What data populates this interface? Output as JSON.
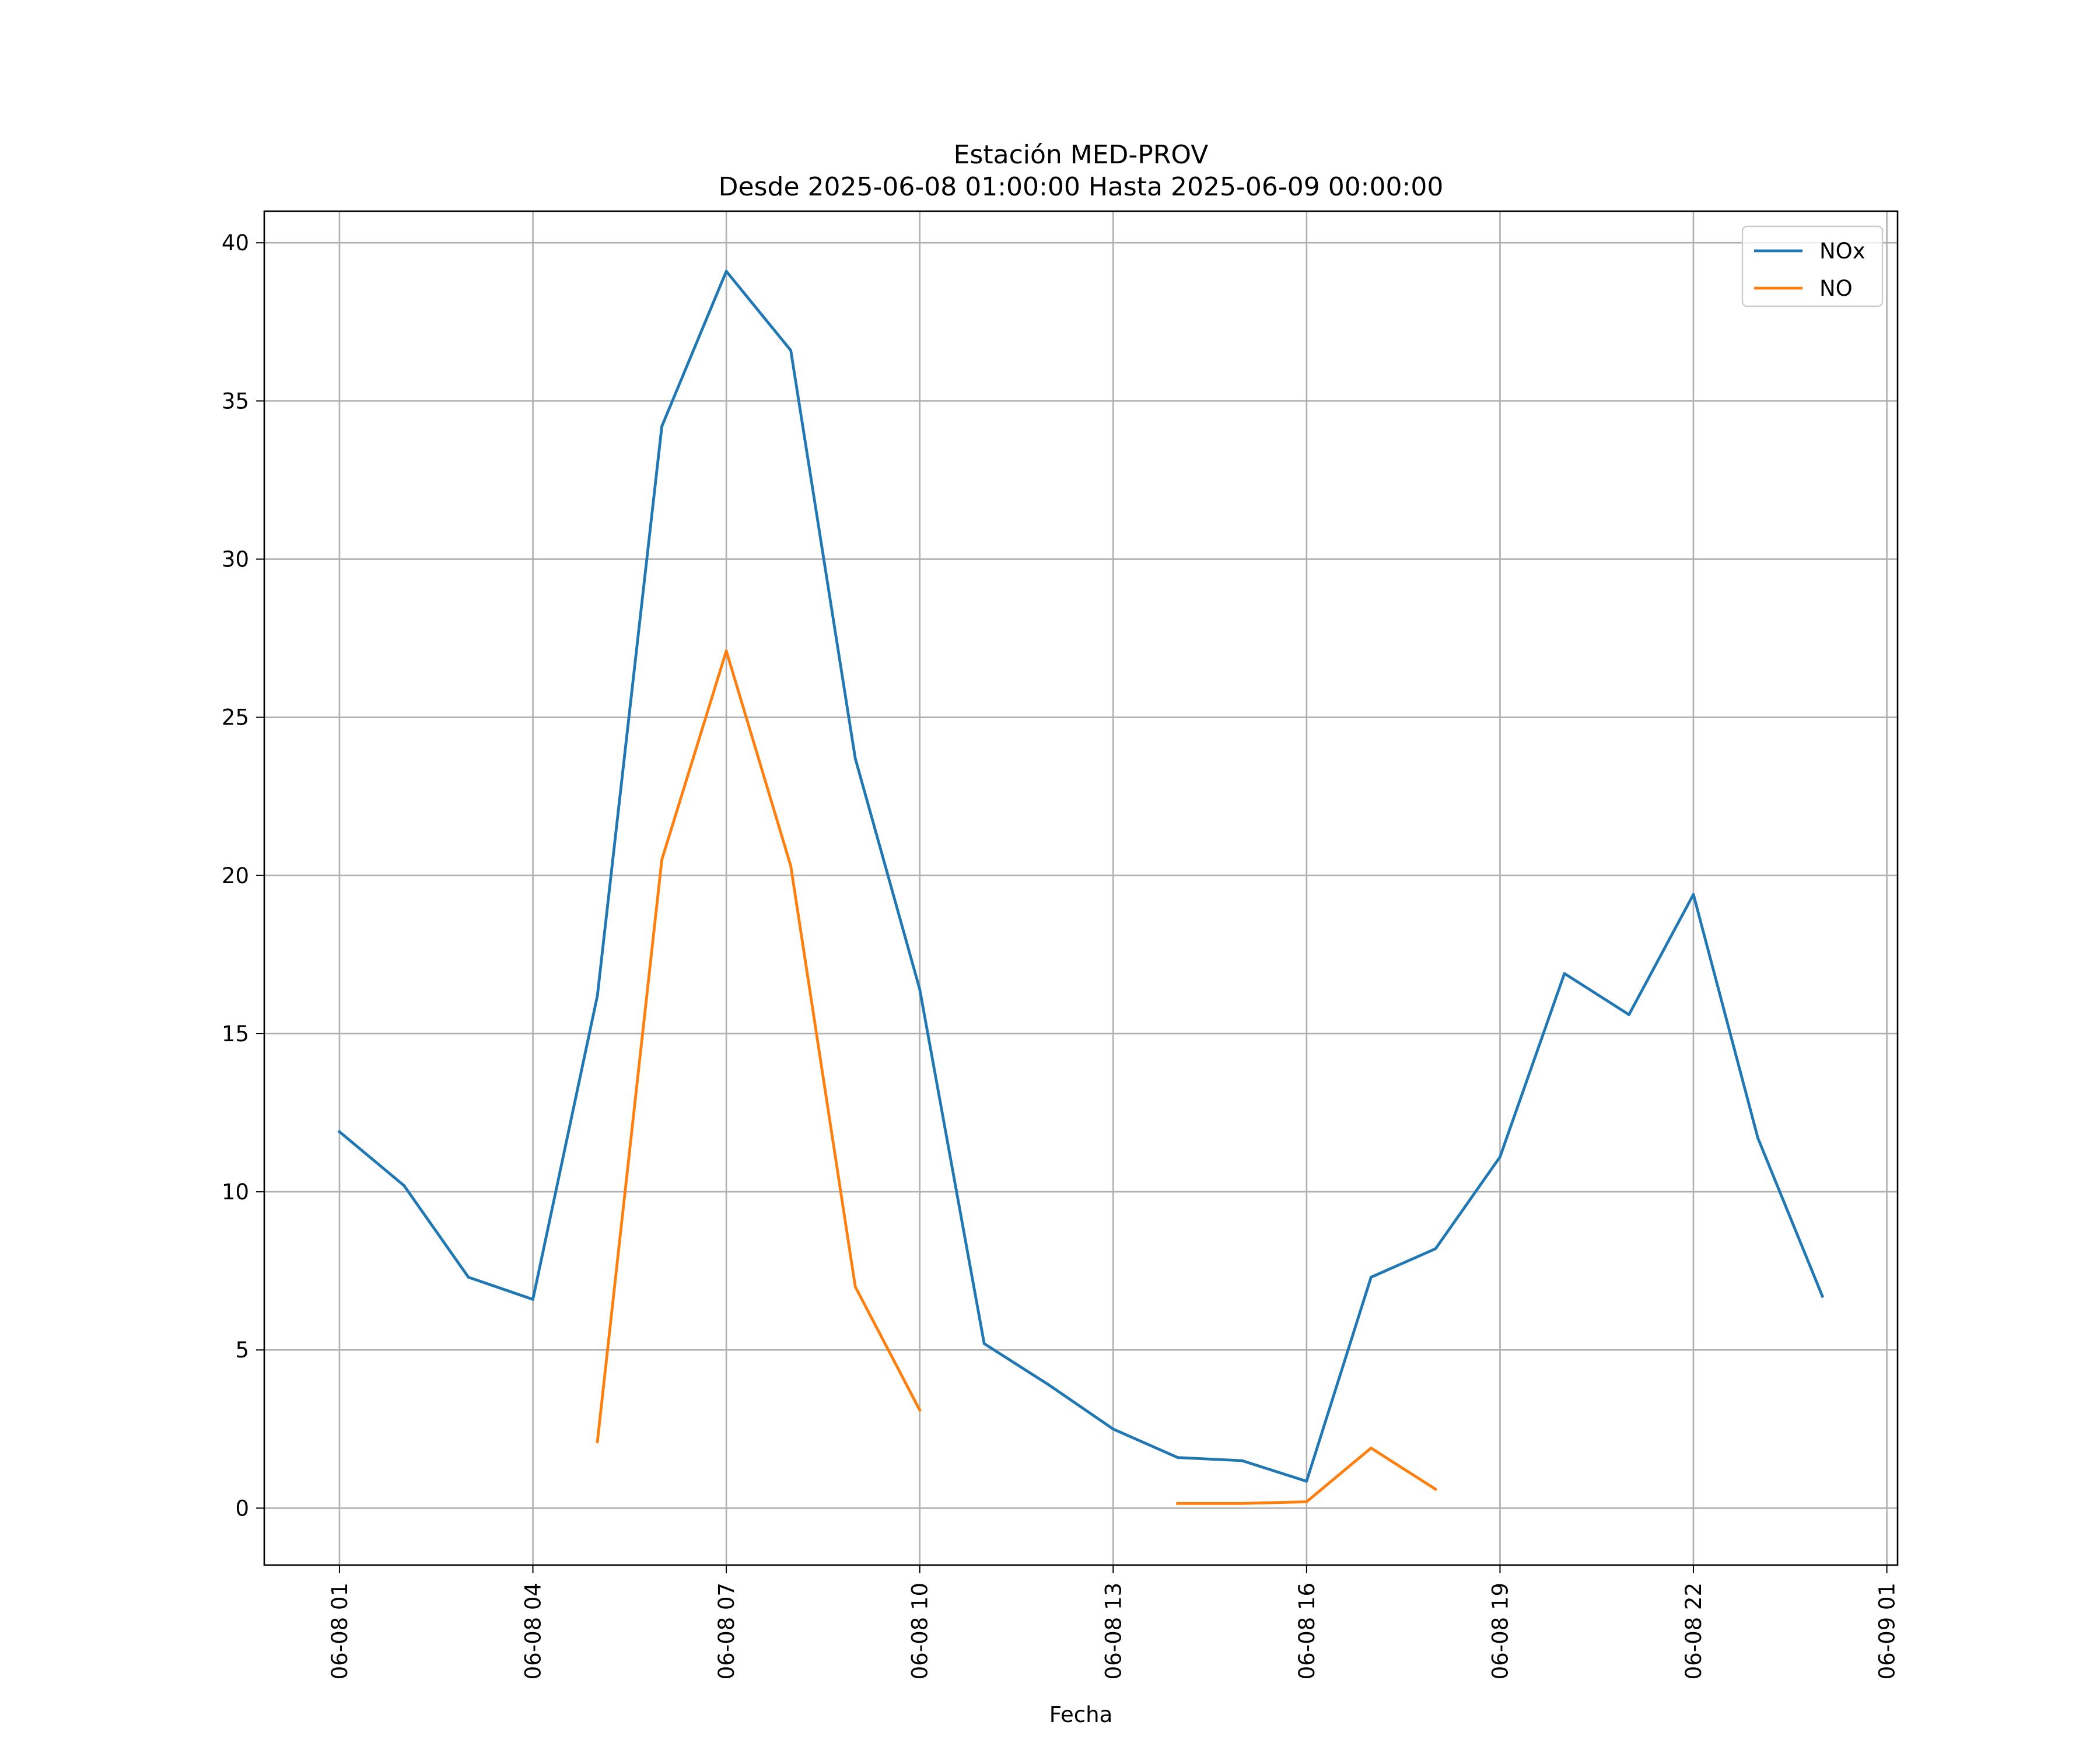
{
  "chart_data": {
    "type": "line",
    "title": "Estación MED-PROV",
    "subtitle": "Desde 2025-06-08 01:00:00 Hasta 2025-06-09 00:00:00",
    "xlabel": "Fecha",
    "ylabel": "",
    "x": [
      "2025-06-08 01:00",
      "2025-06-08 02:00",
      "2025-06-08 03:00",
      "2025-06-08 04:00",
      "2025-06-08 05:00",
      "2025-06-08 06:00",
      "2025-06-08 07:00",
      "2025-06-08 08:00",
      "2025-06-08 09:00",
      "2025-06-08 10:00",
      "2025-06-08 11:00",
      "2025-06-08 12:00",
      "2025-06-08 13:00",
      "2025-06-08 14:00",
      "2025-06-08 15:00",
      "2025-06-08 16:00",
      "2025-06-08 17:00",
      "2025-06-08 18:00",
      "2025-06-08 19:00",
      "2025-06-08 20:00",
      "2025-06-08 21:00",
      "2025-06-08 22:00",
      "2025-06-08 23:00",
      "2025-06-09 00:00"
    ],
    "xlim": [
      "2025-06-07 23:50",
      "2025-06-09 01:10"
    ],
    "xticks": [
      {
        "x": "2025-06-08 01:00",
        "label": "06-08 01"
      },
      {
        "x": "2025-06-08 04:00",
        "label": "06-08 04"
      },
      {
        "x": "2025-06-08 07:00",
        "label": "06-08 07"
      },
      {
        "x": "2025-06-08 10:00",
        "label": "06-08 10"
      },
      {
        "x": "2025-06-08 13:00",
        "label": "06-08 13"
      },
      {
        "x": "2025-06-08 16:00",
        "label": "06-08 16"
      },
      {
        "x": "2025-06-08 19:00",
        "label": "06-08 19"
      },
      {
        "x": "2025-06-08 22:00",
        "label": "06-08 22"
      },
      {
        "x": "2025-06-09 01:00",
        "label": "06-09 01"
      }
    ],
    "ylim": [
      -1.8,
      41
    ],
    "yticks": [
      0,
      5,
      10,
      15,
      20,
      25,
      30,
      35,
      40
    ],
    "grid": true,
    "legend": "top-right",
    "series": [
      {
        "name": "NOx",
        "color": "#1f77b4",
        "values": [
          11.9,
          10.2,
          7.3,
          6.6,
          16.2,
          34.2,
          39.1,
          36.6,
          23.7,
          16.4,
          5.2,
          3.9,
          2.5,
          1.6,
          1.5,
          0.85,
          7.3,
          8.2,
          11.1,
          16.9,
          15.6,
          19.4,
          11.7,
          6.7
        ]
      },
      {
        "name": "NO",
        "color": "#ff7f0e",
        "values": [
          null,
          null,
          null,
          null,
          2.1,
          20.5,
          27.1,
          20.3,
          7.0,
          3.1,
          null,
          null,
          null,
          0.15,
          0.15,
          0.2,
          1.9,
          0.6,
          null,
          null,
          null,
          null,
          null,
          null
        ]
      }
    ]
  }
}
